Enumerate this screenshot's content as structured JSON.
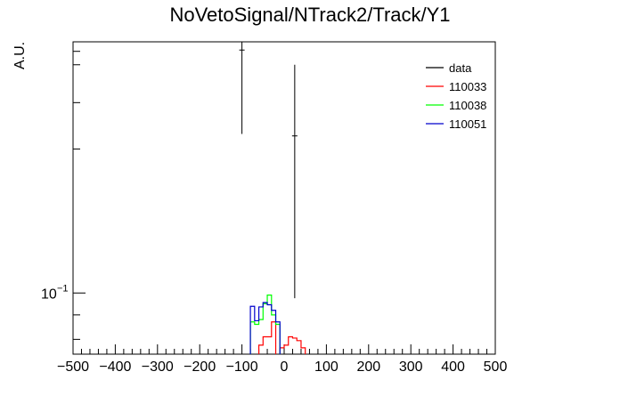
{
  "chart_data": {
    "type": "line",
    "title": "NoVetoSignal/NTrack2/Track/Y1",
    "xlabel": "",
    "ylabel": "A.U.",
    "xlim": [
      -500,
      500
    ],
    "ylim": [
      0.0745,
      0.335
    ],
    "yscale": "log",
    "x_ticks": [
      -500,
      -400,
      -300,
      -200,
      -100,
      0,
      100,
      200,
      300,
      400,
      500
    ],
    "x_tick_labels": [
      "−500",
      "−400",
      "−300",
      "−200",
      "−100",
      "0",
      "100",
      "200",
      "300",
      "400",
      "500"
    ],
    "y_tick_label": "10",
    "y_tick_exponent": "−1",
    "legend_position": "top-right",
    "data": {
      "name": "data",
      "color": "#000000",
      "points": [
        {
          "x": -100,
          "y": 0.322,
          "ylo": 0.215,
          "yhi": 0.335
        },
        {
          "x": 25,
          "y": 0.213,
          "ylo": 0.0975,
          "yhi": 0.3
        }
      ]
    },
    "bin_width": 10,
    "series": [
      {
        "name": "110033",
        "color": "#ff0000",
        "bins": [
          {
            "x": -60,
            "y": 0.0778
          },
          {
            "x": -50,
            "y": 0.081
          },
          {
            "x": -40,
            "y": 0.081
          },
          {
            "x": -30,
            "y": 0.087
          },
          {
            "x": -10,
            "y": 0.0768
          },
          {
            "x": 0,
            "y": 0.0778
          },
          {
            "x": 10,
            "y": 0.081
          },
          {
            "x": 20,
            "y": 0.0805
          },
          {
            "x": 30,
            "y": 0.0795
          },
          {
            "x": 40,
            "y": 0.0768
          }
        ]
      },
      {
        "name": "110038",
        "color": "#00ff00",
        "bins": [
          {
            "x": -80,
            "y": 0.087
          },
          {
            "x": -70,
            "y": 0.086
          },
          {
            "x": -60,
            "y": 0.088
          },
          {
            "x": -50,
            "y": 0.095
          },
          {
            "x": -40,
            "y": 0.099
          },
          {
            "x": -30,
            "y": 0.09
          },
          {
            "x": -20,
            "y": 0.086
          }
        ]
      },
      {
        "name": "110051",
        "color": "#0000cc",
        "bins": [
          {
            "x": -80,
            "y": 0.0938
          },
          {
            "x": -70,
            "y": 0.0875
          },
          {
            "x": -60,
            "y": 0.0935
          },
          {
            "x": -50,
            "y": 0.0955
          },
          {
            "x": -40,
            "y": 0.0945
          },
          {
            "x": -30,
            "y": 0.092
          },
          {
            "x": -20,
            "y": 0.087
          }
        ]
      }
    ]
  }
}
